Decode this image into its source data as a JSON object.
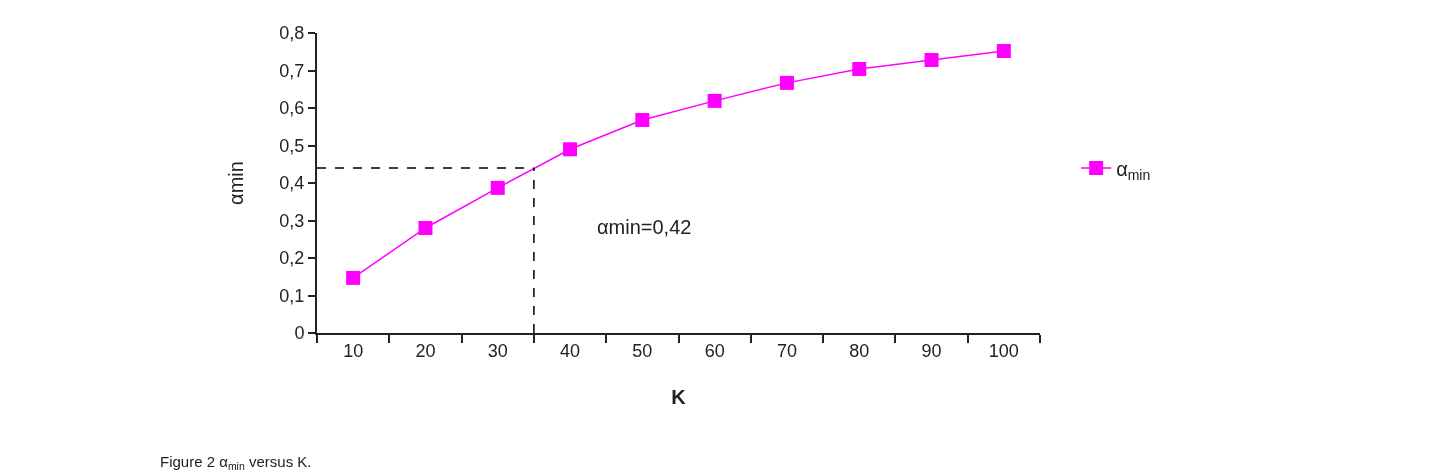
{
  "chart_data": {
    "type": "line",
    "xlabel": "K",
    "ylabel": "αmin",
    "x": [
      10,
      20,
      30,
      40,
      50,
      60,
      70,
      80,
      90,
      100
    ],
    "series": [
      {
        "name": "α$_{min}$",
        "color": "#ff00ff",
        "values": [
          0.147,
          0.28,
          0.387,
          0.49,
          0.568,
          0.619,
          0.667,
          0.704,
          0.728,
          0.752
        ]
      }
    ],
    "xlim": [
      5,
      105
    ],
    "xticks": [
      10,
      20,
      30,
      40,
      50,
      60,
      70,
      80,
      90,
      100
    ],
    "ylim": [
      0,
      0.8
    ],
    "yticks": [
      0,
      {
        "value": 0.1,
        "label": "0,1"
      },
      {
        "value": 0.2,
        "label": "0,2"
      },
      {
        "value": 0.3,
        "label": "0,3"
      },
      {
        "value": 0.4,
        "label": "0,4"
      },
      {
        "value": 0.5,
        "label": "0,5"
      },
      {
        "value": 0.6,
        "label": "0,6"
      },
      {
        "value": 0.7,
        "label": "0,7"
      },
      {
        "value": 0.8,
        "label": "0,8"
      }
    ],
    "ref_lines": [
      {
        "axis": "x",
        "value": 35,
        "color": "#000000",
        "line_style": "dashed"
      },
      {
        "axis": "y",
        "value": 0.44,
        "color": "#000000",
        "line_style": "dashed"
      }
    ],
    "annotations": [
      "αmin=0,42",
      "Figure 2 α$_{min}$ versus K."
    ],
    "marker": "square",
    "line_style": "solid",
    "grid": false,
    "legend": "right"
  }
}
